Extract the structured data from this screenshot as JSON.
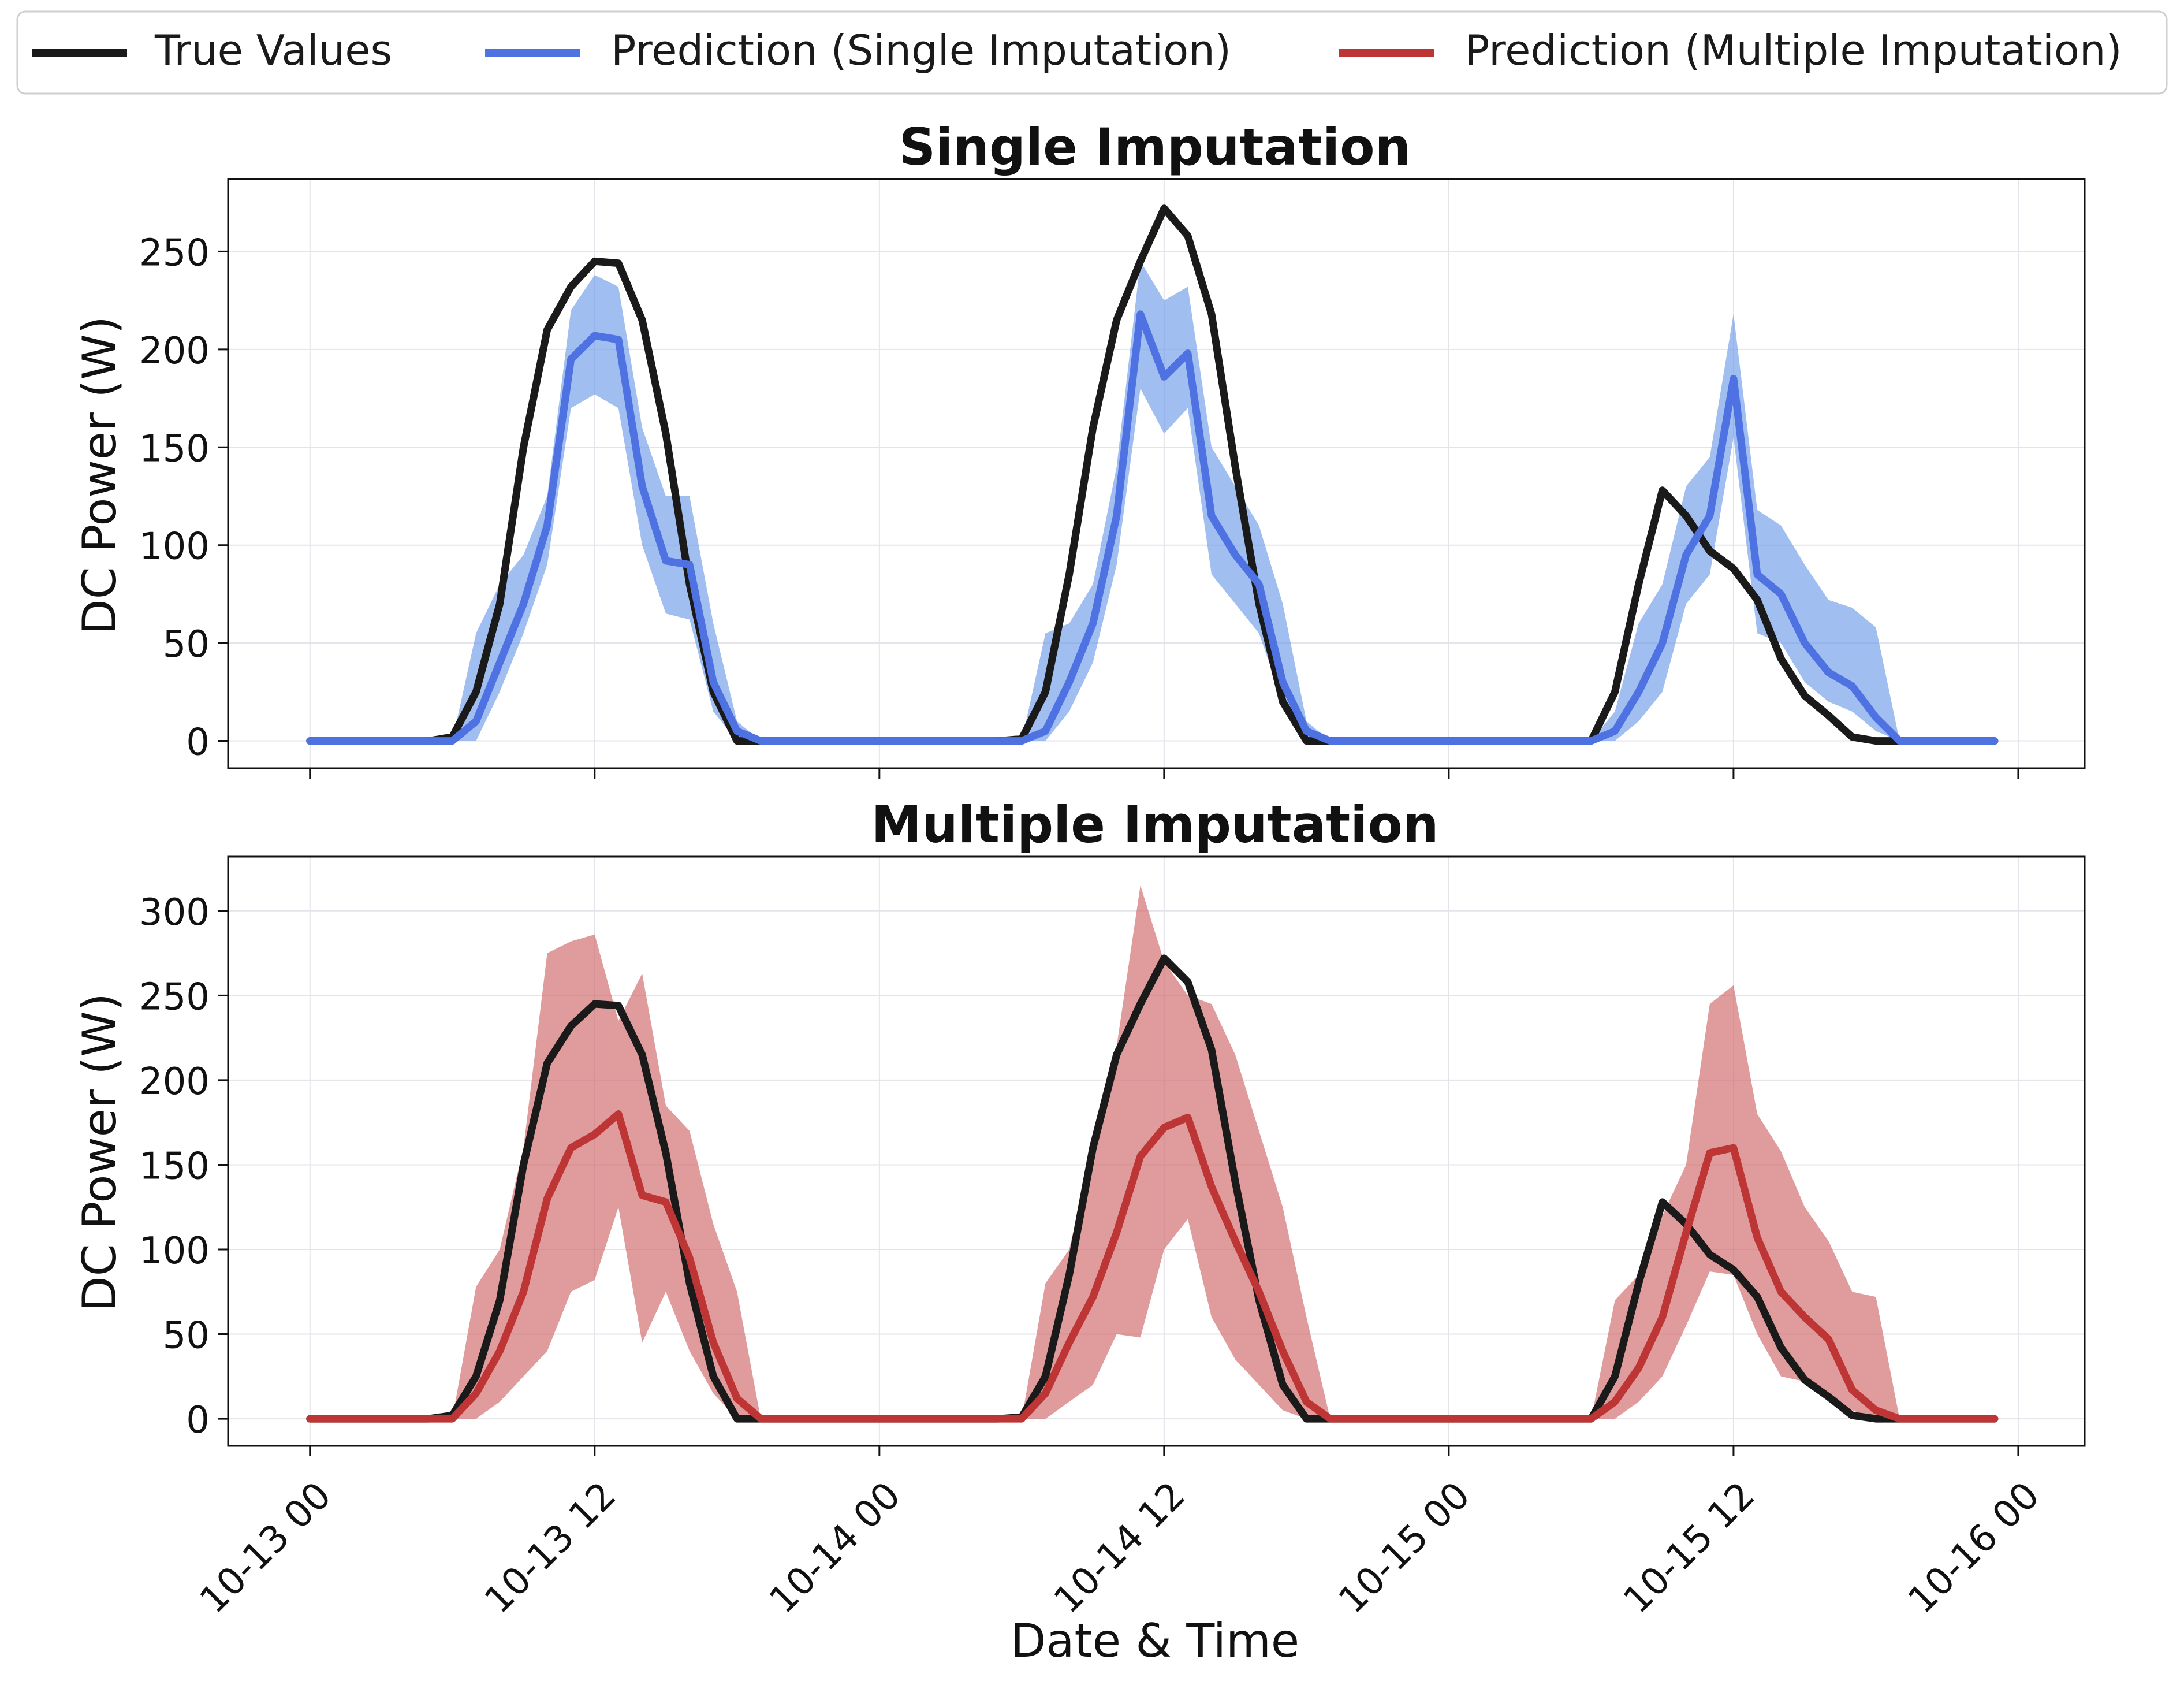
{
  "legend": {
    "items": [
      {
        "label": "True Values",
        "color": "#1a1a1a"
      },
      {
        "label": "Prediction (Single Imputation)",
        "color": "#4f72e3"
      },
      {
        "label": "Prediction (Multiple Imputation)",
        "color": "#be3535"
      }
    ]
  },
  "chart_data": [
    {
      "type": "line",
      "title": "Single Imputation",
      "xlabel": "",
      "ylabel": "DC Power (W)",
      "ylim": [
        -14,
        287
      ],
      "yticks": [
        0,
        50,
        100,
        150,
        200,
        250
      ],
      "xlim": [
        -3.45,
        74.8
      ],
      "xticks": [
        0,
        12,
        24,
        36,
        48,
        60,
        72
      ],
      "xtick_labels": [
        "10-13 00",
        "10-13 12",
        "10-14 00",
        "10-14 12",
        "10-15 00",
        "10-15 12",
        "10-16 00"
      ],
      "show_xtick_labels": false,
      "grid": true,
      "prediction_color": "#4f72e3",
      "band_color": "#6f9bea",
      "x": [
        0,
        1,
        2,
        3,
        4,
        5,
        6,
        7,
        8,
        9,
        10,
        11,
        12,
        13,
        14,
        15,
        16,
        17,
        18,
        19,
        20,
        21,
        22,
        23,
        24,
        25,
        26,
        27,
        28,
        29,
        30,
        31,
        32,
        33,
        34,
        35,
        36,
        37,
        38,
        39,
        40,
        41,
        42,
        43,
        44,
        45,
        46,
        47,
        48,
        49,
        50,
        51,
        52,
        53,
        54,
        55,
        56,
        57,
        58,
        59,
        60,
        61,
        62,
        63,
        64,
        65,
        66,
        67,
        68,
        69,
        70,
        71
      ],
      "series": [
        {
          "name": "True Values",
          "values": [
            0,
            0,
            0,
            0,
            0,
            0,
            2,
            25,
            70,
            150,
            210,
            232,
            245,
            244,
            215,
            157,
            80,
            25,
            0,
            0,
            0,
            0,
            0,
            0,
            0,
            0,
            0,
            0,
            0,
            0,
            1,
            25,
            85,
            160,
            215,
            245,
            272,
            258,
            218,
            140,
            70,
            20,
            0,
            0,
            0,
            0,
            0,
            0,
            0,
            0,
            0,
            0,
            0,
            0,
            0,
            25,
            80,
            128,
            115,
            97,
            88,
            72,
            42,
            23,
            13,
            2,
            0,
            0,
            0,
            0,
            0,
            0
          ]
        },
        {
          "name": "Prediction (Single Imputation)",
          "values": [
            0,
            0,
            0,
            0,
            0,
            0,
            0,
            10,
            40,
            70,
            110,
            195,
            207,
            205,
            130,
            92,
            90,
            30,
            5,
            0,
            0,
            0,
            0,
            0,
            0,
            0,
            0,
            0,
            0,
            0,
            0,
            5,
            30,
            60,
            115,
            218,
            186,
            198,
            115,
            95,
            80,
            30,
            5,
            0,
            0,
            0,
            0,
            0,
            0,
            0,
            0,
            0,
            0,
            0,
            0,
            5,
            25,
            50,
            95,
            115,
            185,
            85,
            75,
            50,
            35,
            28,
            12,
            0,
            0,
            0,
            0,
            0
          ],
          "lower": [
            0,
            0,
            0,
            0,
            0,
            0,
            0,
            0,
            25,
            55,
            90,
            170,
            177,
            170,
            100,
            65,
            62,
            15,
            0,
            0,
            0,
            0,
            0,
            0,
            0,
            0,
            0,
            0,
            0,
            0,
            0,
            0,
            15,
            40,
            90,
            180,
            157,
            170,
            85,
            70,
            55,
            20,
            0,
            0,
            0,
            0,
            0,
            0,
            0,
            0,
            0,
            0,
            0,
            0,
            0,
            0,
            10,
            25,
            70,
            85,
            155,
            55,
            50,
            30,
            20,
            15,
            5,
            0,
            0,
            0,
            0,
            0
          ],
          "upper": [
            0,
            0,
            0,
            0,
            0,
            0,
            0,
            55,
            80,
            95,
            125,
            220,
            238,
            232,
            160,
            125,
            125,
            60,
            10,
            0,
            0,
            0,
            0,
            0,
            0,
            0,
            0,
            0,
            0,
            0,
            0,
            55,
            60,
            80,
            140,
            245,
            225,
            232,
            150,
            130,
            110,
            70,
            10,
            0,
            0,
            0,
            0,
            0,
            0,
            0,
            0,
            0,
            0,
            0,
            0,
            15,
            60,
            80,
            130,
            145,
            218,
            118,
            110,
            90,
            72,
            68,
            58,
            0,
            0,
            0,
            0,
            0
          ]
        }
      ]
    },
    {
      "type": "line",
      "title": "Multiple Imputation",
      "xlabel": "Date & Time",
      "ylabel": "DC Power (W)",
      "ylim": [
        -16,
        332
      ],
      "yticks": [
        0,
        50,
        100,
        150,
        200,
        250,
        300
      ],
      "xlim": [
        -3.45,
        74.8
      ],
      "xticks": [
        0,
        12,
        24,
        36,
        48,
        60,
        72
      ],
      "xtick_labels": [
        "10-13 00",
        "10-13 12",
        "10-14 00",
        "10-14 12",
        "10-15 00",
        "10-15 12",
        "10-16 00"
      ],
      "show_xtick_labels": true,
      "grid": true,
      "prediction_color": "#be3535",
      "band_color": "#d06767",
      "x": [
        0,
        1,
        2,
        3,
        4,
        5,
        6,
        7,
        8,
        9,
        10,
        11,
        12,
        13,
        14,
        15,
        16,
        17,
        18,
        19,
        20,
        21,
        22,
        23,
        24,
        25,
        26,
        27,
        28,
        29,
        30,
        31,
        32,
        33,
        34,
        35,
        36,
        37,
        38,
        39,
        40,
        41,
        42,
        43,
        44,
        45,
        46,
        47,
        48,
        49,
        50,
        51,
        52,
        53,
        54,
        55,
        56,
        57,
        58,
        59,
        60,
        61,
        62,
        63,
        64,
        65,
        66,
        67,
        68,
        69,
        70,
        71
      ],
      "series": [
        {
          "name": "True Values",
          "values": [
            0,
            0,
            0,
            0,
            0,
            0,
            2,
            25,
            70,
            150,
            210,
            232,
            245,
            244,
            215,
            157,
            80,
            25,
            0,
            0,
            0,
            0,
            0,
            0,
            0,
            0,
            0,
            0,
            0,
            0,
            1,
            25,
            85,
            160,
            215,
            245,
            272,
            258,
            218,
            140,
            70,
            20,
            0,
            0,
            0,
            0,
            0,
            0,
            0,
            0,
            0,
            0,
            0,
            0,
            0,
            25,
            80,
            128,
            115,
            97,
            88,
            72,
            42,
            23,
            13,
            2,
            0,
            0,
            0,
            0,
            0,
            0
          ]
        },
        {
          "name": "Prediction (Multiple Imputation)",
          "values": [
            0,
            0,
            0,
            0,
            0,
            0,
            0,
            15,
            40,
            75,
            130,
            160,
            168,
            180,
            132,
            128,
            95,
            45,
            12,
            0,
            0,
            0,
            0,
            0,
            0,
            0,
            0,
            0,
            0,
            0,
            0,
            15,
            45,
            72,
            110,
            155,
            172,
            178,
            137,
            105,
            75,
            40,
            10,
            0,
            0,
            0,
            0,
            0,
            0,
            0,
            0,
            0,
            0,
            0,
            0,
            10,
            30,
            60,
            110,
            157,
            160,
            107,
            75,
            60,
            47,
            17,
            5,
            0,
            0,
            0,
            0,
            0
          ],
          "lower": [
            0,
            0,
            0,
            0,
            0,
            0,
            0,
            0,
            10,
            25,
            40,
            75,
            82,
            125,
            45,
            75,
            40,
            15,
            0,
            0,
            0,
            0,
            0,
            0,
            0,
            0,
            0,
            0,
            0,
            0,
            0,
            0,
            10,
            20,
            50,
            48,
            100,
            118,
            60,
            35,
            20,
            5,
            0,
            0,
            0,
            0,
            0,
            0,
            0,
            0,
            0,
            0,
            0,
            0,
            0,
            0,
            10,
            25,
            55,
            87,
            85,
            50,
            25,
            22,
            15,
            5,
            0,
            0,
            0,
            0,
            0,
            0
          ],
          "upper": [
            0,
            0,
            0,
            0,
            0,
            0,
            0,
            78,
            100,
            160,
            275,
            282,
            286,
            235,
            263,
            185,
            170,
            115,
            75,
            0,
            0,
            0,
            0,
            0,
            0,
            0,
            0,
            0,
            0,
            0,
            0,
            80,
            100,
            160,
            220,
            315,
            270,
            250,
            245,
            215,
            170,
            125,
            60,
            0,
            0,
            0,
            0,
            0,
            0,
            0,
            0,
            0,
            0,
            0,
            0,
            70,
            85,
            120,
            150,
            245,
            256,
            180,
            158,
            125,
            105,
            75,
            72,
            0,
            0,
            0,
            0,
            0
          ]
        }
      ]
    }
  ]
}
